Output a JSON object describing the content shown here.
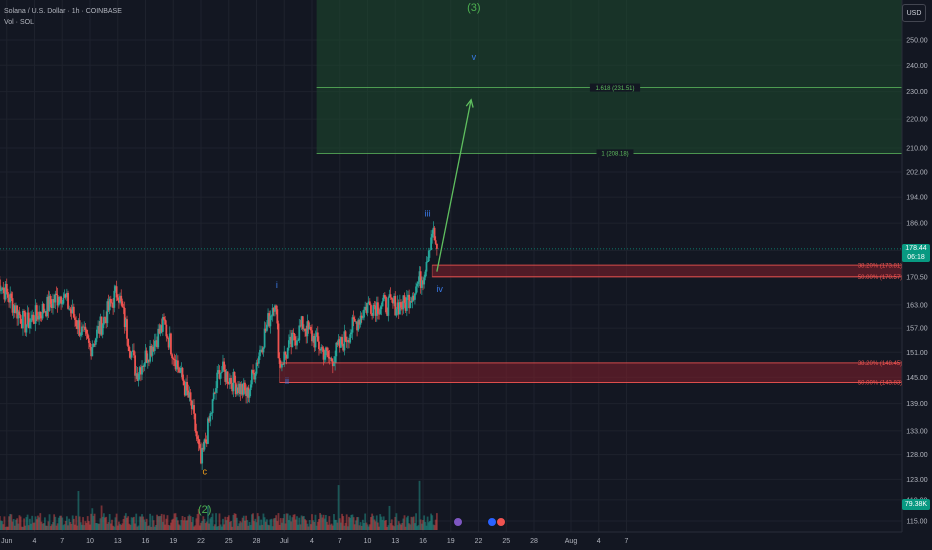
{
  "header": {
    "title": "Solana / U.S. Dollar · 1h · COINBASE",
    "volume_label": "Vol · SOL"
  },
  "currency_button": "USD",
  "current_price": {
    "value": "178.44",
    "countdown": "06:18",
    "color": "#089981"
  },
  "volume_badge": {
    "value": "79.38K",
    "color": "#089981"
  },
  "colors": {
    "background": "#131722",
    "up": "#26a69a",
    "down": "#ef5350",
    "target_zone": "#1e4a2e",
    "target_line": "#5fbf5f",
    "support_zone": "#7a1f2b",
    "support_line": "#ef5350",
    "wave_blue": "#3a7be8",
    "wave_green": "#4caf50",
    "wave_orange": "#f7a21b"
  },
  "chart_data": {
    "type": "candlestick",
    "x_ticks": [
      "Jun",
      "4",
      "7",
      "10",
      "13",
      "16",
      "19",
      "22",
      "25",
      "28",
      "Jul",
      "4",
      "7",
      "10",
      "13",
      "16",
      "19",
      "22",
      "25",
      "28",
      "Aug",
      "4",
      "7"
    ],
    "y_ticks": [
      "250.00",
      "240.00",
      "230.00",
      "220.00",
      "210.00",
      "202.00",
      "194.00",
      "186.00",
      "178.00",
      "170.50",
      "163.00",
      "157.00",
      "151.00",
      "145.00",
      "139.00",
      "133.00",
      "128.00",
      "123.00",
      "119.00",
      "115.00"
    ],
    "y_axis_scale": "log",
    "key_points": [
      {
        "day": 0,
        "price": 170.0
      },
      {
        "day": 3,
        "price": 158.0
      },
      {
        "day": 7,
        "price": 166.0
      },
      {
        "day": 10,
        "price": 152.0
      },
      {
        "day": 13,
        "price": 167.0
      },
      {
        "day": 15,
        "price": 146.0
      },
      {
        "day": 18,
        "price": 158.0
      },
      {
        "day": 21,
        "price": 138.0
      },
      {
        "day": 22,
        "price": 126.0
      },
      {
        "day": 24,
        "price": 147.0
      },
      {
        "day": 27,
        "price": 141.0
      },
      {
        "day": 30,
        "price": 165.0
      },
      {
        "day": 30.5,
        "price": 148.0
      },
      {
        "day": 33,
        "price": 158.0
      },
      {
        "day": 36,
        "price": 149.0
      },
      {
        "day": 40,
        "price": 163.0
      },
      {
        "day": 44,
        "price": 163.0
      },
      {
        "day": 46,
        "price": 171.0
      },
      {
        "day": 47,
        "price": 184.0
      },
      {
        "day": 47.5,
        "price": 178.44
      }
    ],
    "wave_labels": [
      {
        "label": "(3)",
        "day": 51.5,
        "price": 262.0,
        "color": "wave_green"
      },
      {
        "label": "v",
        "day": 51.5,
        "price": 242.0,
        "color": "wave_blue"
      },
      {
        "label": "iii",
        "day": 46.5,
        "price": 188.0,
        "color": "wave_blue"
      },
      {
        "label": "iv",
        "day": 47.8,
        "price": 166.5,
        "color": "wave_blue"
      },
      {
        "label": "i",
        "day": 30.2,
        "price": 167.5,
        "color": "wave_blue"
      },
      {
        "label": "ii",
        "day": 31.3,
        "price": 143.5,
        "color": "wave_blue"
      },
      {
        "label": "c",
        "day": 22.4,
        "price": 124.0,
        "color": "wave_orange"
      },
      {
        "label": "(2)",
        "day": 22.4,
        "price": 116.5,
        "color": "wave_green"
      }
    ],
    "fib_levels": [
      {
        "label": "1.618 (231.51)",
        "price": 231.51,
        "color": "target_line"
      },
      {
        "label": "1 (208.18)",
        "price": 208.18,
        "color": "target_line"
      },
      {
        "label": "38.20% (173.81)",
        "price": 173.81,
        "color": "support_line"
      },
      {
        "label": "50.00% (170.57)",
        "price": 170.57,
        "color": "support_line"
      },
      {
        "label": "38.20% (148.45)",
        "price": 148.45,
        "color": "support_line"
      },
      {
        "label": "50.00% (143.83)",
        "price": 143.83,
        "color": "support_line"
      }
    ],
    "target_zone": {
      "day_start": 34.5,
      "price_low": 208.18
    },
    "support_zones": [
      {
        "day_start": 47.0,
        "price_high": 173.81,
        "price_low": 170.57
      },
      {
        "day_start": 30.5,
        "price_high": 148.45,
        "price_low": 143.83
      }
    ],
    "projection_arrow": {
      "from_day": 47.5,
      "from_price": 172.0,
      "to_day": 51.2,
      "to_price": 227.0
    },
    "current_price_line": 178.44
  }
}
